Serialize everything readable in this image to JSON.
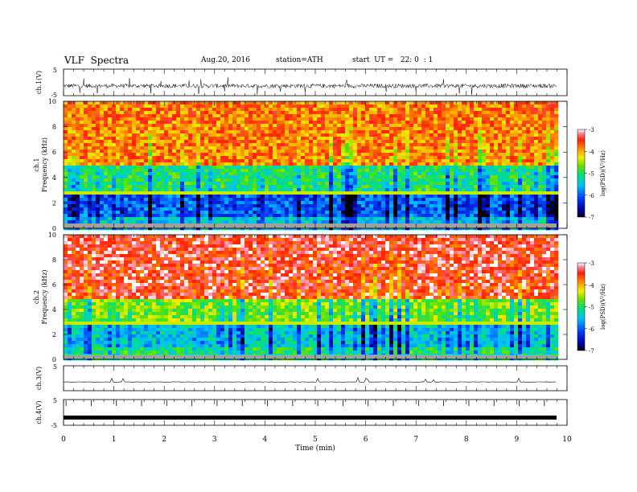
{
  "header": {
    "title": "VLF  Spectra",
    "date": "Aug.20, 2016",
    "station": "station=ATH",
    "start": "start  UT =   22: 0  : 1"
  },
  "chart_data": [
    {
      "type": "line",
      "name": "ch.1 waveform",
      "ylabel": "ch.1(V)",
      "ylim": [
        -5,
        5
      ],
      "yticks": [
        "5",
        "-5"
      ],
      "xlim": [
        0,
        10
      ],
      "trace": "dense noisy waveform, amplitude about +/-1 V around -1.3 V"
    },
    {
      "type": "heatmap",
      "name": "ch.1 spectrogram",
      "ylabel": "ch.1",
      "ylabel2": "Frequency  (kHz)",
      "ylim": [
        0,
        10
      ],
      "yticks": [
        "0",
        "2",
        "4",
        "6",
        "8",
        "10"
      ],
      "xlim": [
        0,
        9.8
      ],
      "colorbar": {
        "label": "log(PSD)(V²/Hz)",
        "range": [
          -7,
          -3
        ],
        "ticks": [
          "-3",
          "-4",
          "-5",
          "-6",
          "-7"
        ]
      },
      "description_levels": {
        "0-1kHz": -5.4,
        "1-3kHz": -6.0,
        "3-5kHz": -5.0,
        "5-10kHz": -3.8
      }
    },
    {
      "type": "heatmap",
      "name": "ch.2 spectrogram",
      "ylabel": "ch.2",
      "ylabel2": "Frequency  (kHz)",
      "ylim": [
        0,
        10
      ],
      "yticks": [
        "0",
        "2",
        "4",
        "6",
        "8",
        "10"
      ],
      "xlim": [
        0,
        9.8
      ],
      "colorbar": {
        "label": "log(PSD)(V²/Hz)",
        "range": [
          -7,
          -3
        ],
        "ticks": [
          "-3",
          "-4",
          "-5",
          "-6",
          "-7"
        ]
      },
      "description_levels": {
        "0-1kHz": -5.2,
        "1-3kHz": -5.6,
        "3-5kHz": -4.8,
        "5-10kHz": -3.6
      }
    },
    {
      "type": "line",
      "name": "ch.3 waveform",
      "ylabel": "ch.3(V)",
      "ylim": [
        -5,
        5
      ],
      "yticks": [
        "5"
      ],
      "xlim": [
        0,
        10
      ],
      "trace": "flat near -1.5 V with sparse small spikes"
    },
    {
      "type": "line",
      "name": "ch.4 waveform",
      "ylabel": "ch.4(V)",
      "ylim": [
        -5,
        5
      ],
      "yticks": [
        "5",
        "-5"
      ],
      "xlim": [
        0,
        9.8
      ],
      "trace": "thick flat line near -2 V with periodic upward ticks",
      "xlabel": "Time  (min)",
      "xticks": [
        "0",
        "1",
        "2",
        "3",
        "4",
        "5",
        "6",
        "7",
        "8",
        "9",
        "10"
      ]
    }
  ]
}
